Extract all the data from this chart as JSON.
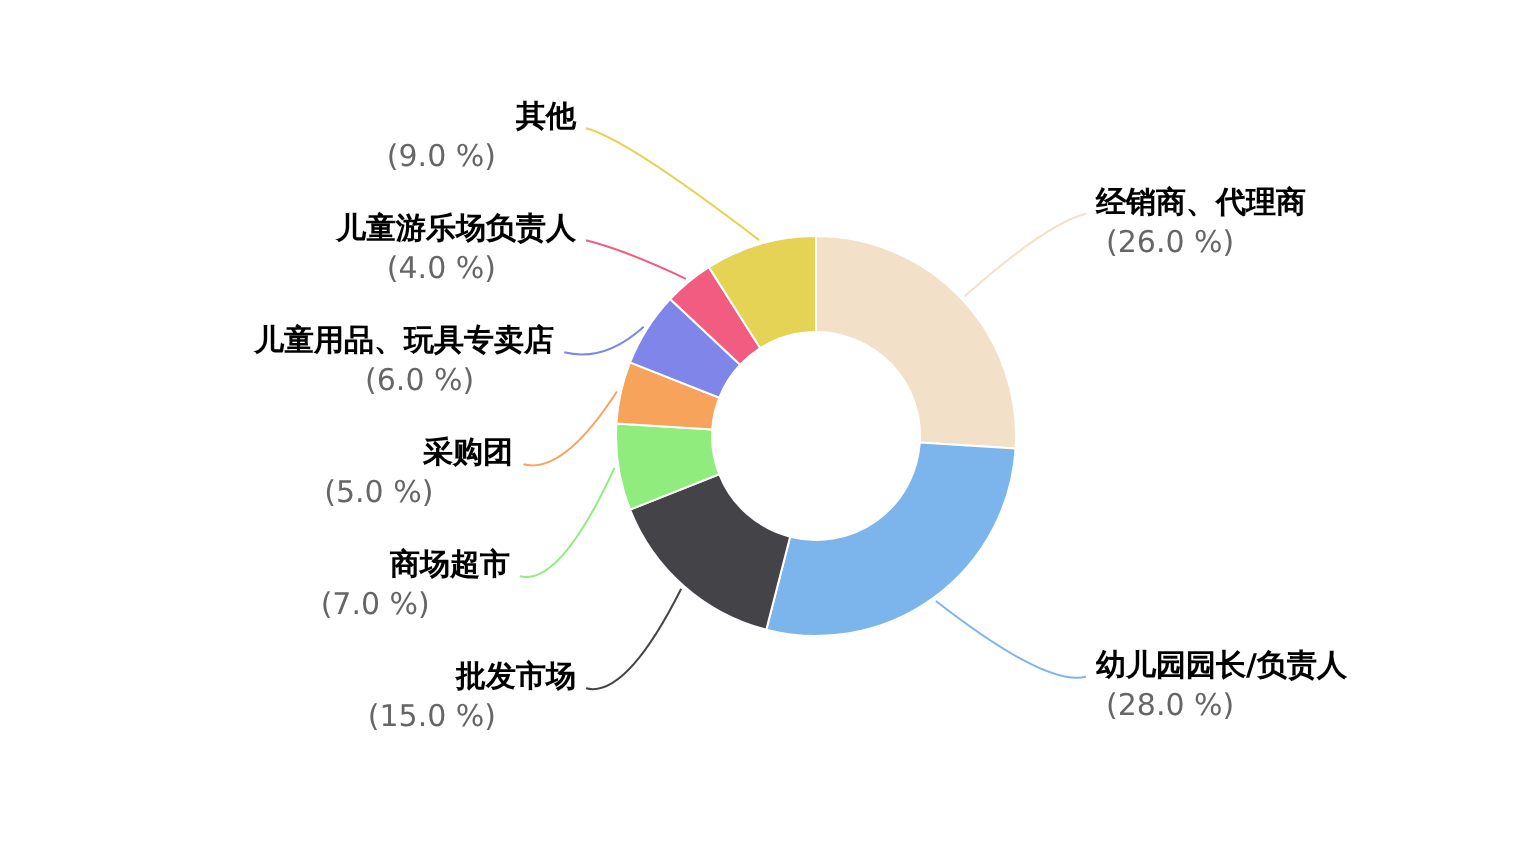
{
  "chart_data": {
    "type": "donut",
    "categories": [
      "经销商、代理商",
      "幼儿园园长/负责人",
      "批发市场",
      "商场超市",
      "采购团",
      "儿童用品、玩具专卖店",
      "儿童游乐场负责人",
      "其他"
    ],
    "values": [
      26,
      28,
      15,
      7,
      5,
      6,
      4,
      9
    ],
    "value_labels": [
      "(26.0 %)",
      "(28.0 %)",
      "(15.0 %)",
      "(7.0 %)",
      "(5.0 %)",
      "(6.0 %)",
      "(4.0 %)",
      "(9.0 %)"
    ],
    "colors": [
      "#f2e0c8",
      "#7cb5ec",
      "#434348",
      "#90ed7d",
      "#f7a35c",
      "#8085e9",
      "#f15c80",
      "#e4d354"
    ]
  }
}
